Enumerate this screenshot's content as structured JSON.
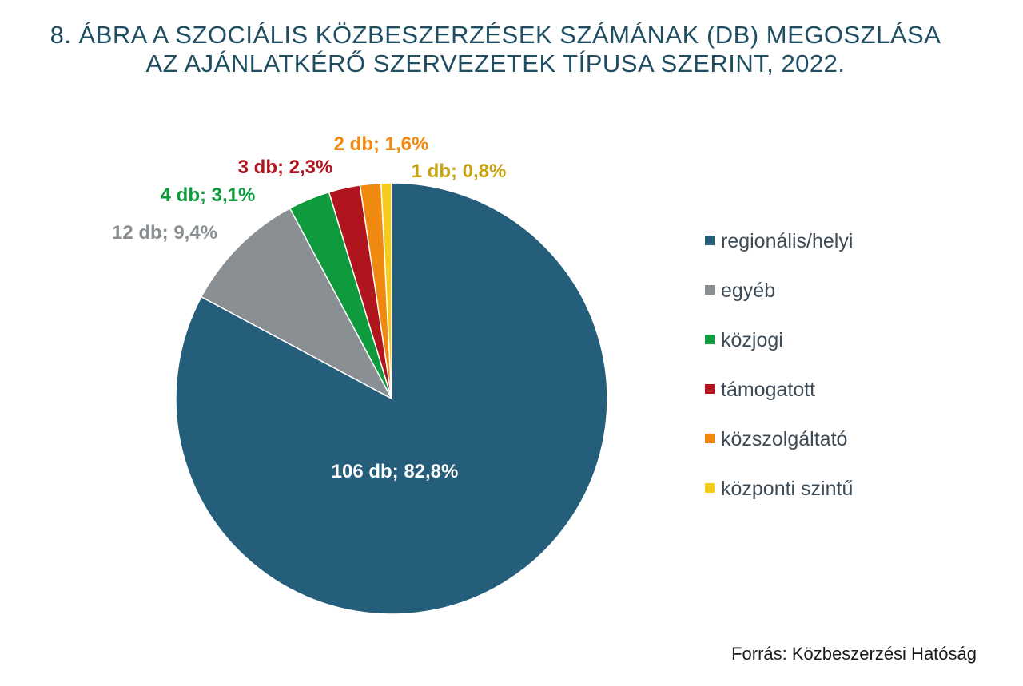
{
  "title_lines": [
    "8. ÁBRA A SZOCIÁLIS KÖZBESZERZÉSEK SZÁMÁNAK (DB) MEGOSZLÁSA",
    "AZ AJÁNLATKÉRŐ SZERVEZETEK TÍPUSA SZERINT, 2022."
  ],
  "source": "Forrás: Közbeszerzési Hatóság",
  "chart_data": {
    "type": "pie",
    "title": "8. ÁBRA A SZOCIÁLIS KÖZBESZERZÉSEK SZÁMÁNAK (DB) MEGOSZLÁSA AZ AJÁNLATKÉRŐ SZERVEZETEK TÍPUSA SZERINT, 2022.",
    "legend_position": "right",
    "slices": [
      {
        "name": "regionális/helyi",
        "value": 106,
        "percent": 82.8,
        "label": "106 db; 82,8%",
        "color": "#255e7a",
        "label_color": "#ffffff"
      },
      {
        "name": "egyéb",
        "value": 12,
        "percent": 9.4,
        "label": "12 db; 9,4%",
        "color": "#8a8f93",
        "label_color": "#8a8f93"
      },
      {
        "name": "közjogi",
        "value": 4,
        "percent": 3.1,
        "label": "4 db; 3,1%",
        "color": "#0f9a3e",
        "label_color": "#0f9a3e"
      },
      {
        "name": "támogatott",
        "value": 3,
        "percent": 2.3,
        "label": "3 db; 2,3%",
        "color": "#b0141d",
        "label_color": "#b0141d"
      },
      {
        "name": "közszolgáltató",
        "value": 2,
        "percent": 1.6,
        "label": "2 db; 1,6%",
        "color": "#f0890f",
        "label_color": "#f0890f"
      },
      {
        "name": "központi szintű",
        "value": 1,
        "percent": 0.8,
        "label": "1 db; 0,8%",
        "color": "#f6cc1a",
        "label_color": "#c9a20f"
      }
    ]
  }
}
